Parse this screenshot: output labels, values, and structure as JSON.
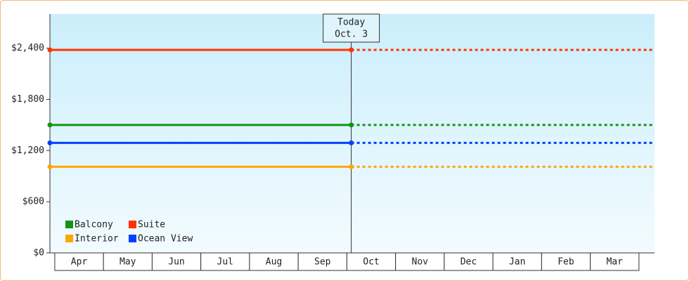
{
  "chart_data": {
    "type": "line",
    "today": {
      "lines": [
        "Today",
        "Oct. 3"
      ],
      "x": 6.09
    },
    "categories": [
      "Apr",
      "May",
      "Jun",
      "Jul",
      "Aug",
      "Sep",
      "Oct",
      "Nov",
      "Dec",
      "Jan",
      "Feb",
      "Mar"
    ],
    "x": [
      -0.1,
      6.09,
      12.32
    ],
    "xlim": [
      -0.1,
      12.32
    ],
    "ylim": [
      0,
      2800
    ],
    "yticks": [
      {
        "value": 0,
        "label": "$0"
      },
      {
        "value": 600,
        "label": "$600"
      },
      {
        "value": 1200,
        "label": "$1,200"
      },
      {
        "value": 1800,
        "label": "$1,800"
      },
      {
        "value": 2400,
        "label": "$2,400"
      }
    ],
    "series": [
      {
        "name": "Balcony",
        "color": "#129612",
        "values": [
          1500,
          1500,
          1500
        ]
      },
      {
        "name": "Suite",
        "color": "#ff3300",
        "values": [
          2380,
          2380,
          2380
        ]
      },
      {
        "name": "Interior",
        "color": "#ffa500",
        "values": [
          1010,
          1010,
          1010
        ]
      },
      {
        "name": "Ocean View",
        "color": "#0040ff",
        "values": [
          1290,
          1290,
          1290
        ]
      }
    ]
  }
}
